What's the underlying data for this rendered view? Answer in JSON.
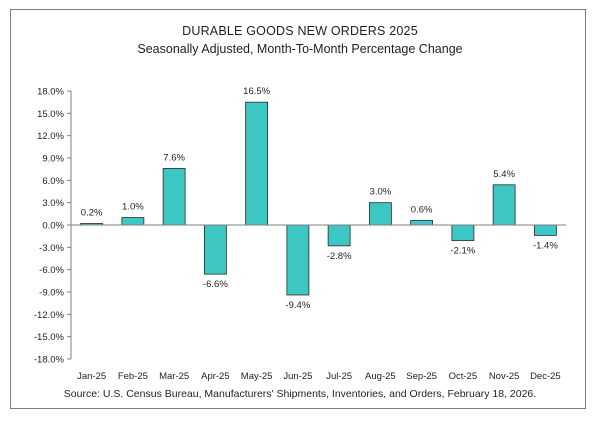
{
  "chart_data": {
    "type": "bar",
    "title": "DURABLE GOODS NEW ORDERS 2025",
    "subtitle": "Seasonally Adjusted,  Month-To-Month Percentage Change",
    "source": "Source: U.S. Census Bureau, Manufacturers' Shipments, Inventories, and Orders, February 18, 2026.",
    "categories": [
      "Jan-25",
      "Feb-25",
      "Mar-25",
      "Apr-25",
      "May-25",
      "Jun-25",
      "Jul-25",
      "Aug-25",
      "Sep-25",
      "Oct-25",
      "Nov-25",
      "Dec-25"
    ],
    "values": [
      0.2,
      1.0,
      7.6,
      -6.6,
      16.5,
      -9.4,
      -2.8,
      3.0,
      0.6,
      -2.1,
      5.4,
      -1.4
    ],
    "value_labels": [
      "0.2%",
      "1.0%",
      "7.6%",
      "-6.6%",
      "16.5%",
      "-9.4%",
      "-2.8%",
      "3.0%",
      "0.6%",
      "-2.1%",
      "5.4%",
      "-1.4%"
    ],
    "ylim": [
      -18.0,
      18.0
    ],
    "yticks": [
      18.0,
      15.0,
      12.0,
      9.0,
      6.0,
      3.0,
      0.0,
      -3.0,
      -6.0,
      -9.0,
      -12.0,
      -15.0,
      -18.0
    ],
    "ytick_labels": [
      "18.0%",
      "15.0%",
      "12.0%",
      "9.0%",
      "6.0%",
      "3.0%",
      "0.0%",
      "-3.0%",
      "-6.0%",
      "-9.0%",
      "-12.0%",
      "-15.0%",
      "-18.0%"
    ],
    "grid": false,
    "bar_color": "#3cc7c4",
    "bar_edge_color": "#2b2b2b"
  }
}
